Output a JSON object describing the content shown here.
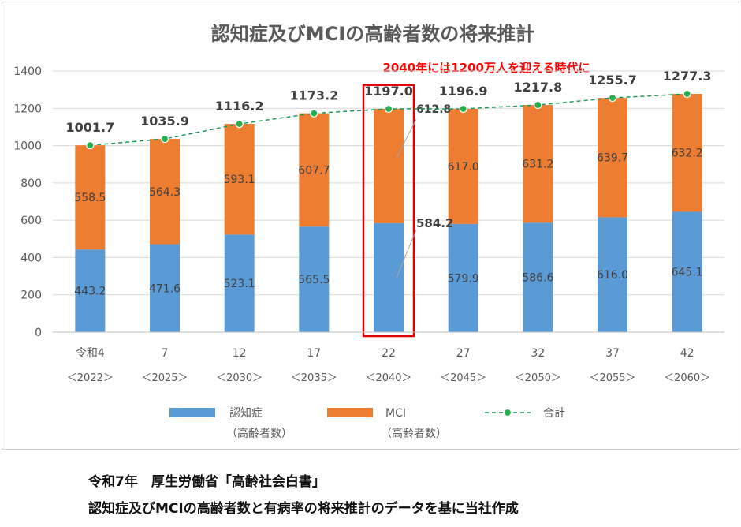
{
  "chart_data": {
    "type": "bar",
    "title": "認知症及びMCIの高齢者数の将来推計",
    "annotation": "2040年には1200万人を迎える時代に",
    "categories": [
      "令和4",
      "7",
      "12",
      "17",
      "22",
      "27",
      "32",
      "37",
      "42"
    ],
    "years": [
      "＜2022＞",
      "＜2025＞",
      "＜2030＞",
      "＜2035＞",
      "＜2040＞",
      "＜2045＞",
      "＜2050＞",
      "＜2055＞",
      "＜2060＞"
    ],
    "series": [
      {
        "name": "認知症",
        "sub": "（高齢者数）",
        "color": "#5b9bd5",
        "values": [
          443.2,
          471.6,
          523.1,
          565.5,
          584.2,
          579.9,
          586.6,
          616.0,
          645.1
        ],
        "labels": [
          "443.2",
          "471.6",
          "523.1",
          "565.5",
          "584.2",
          "579.9",
          "586.6",
          "616.0",
          "645.1"
        ]
      },
      {
        "name": "MCI",
        "sub": "（高齢者数）",
        "color": "#ed7d31",
        "values": [
          558.5,
          564.3,
          593.1,
          607.7,
          612.8,
          617.0,
          631.2,
          639.7,
          632.2
        ],
        "labels": [
          "558.5",
          "564.3",
          "593.1",
          "607.7",
          "612.8",
          "617.0",
          "631.2",
          "639.7",
          "632.2"
        ]
      },
      {
        "name": "合計",
        "type": "line",
        "color": "#1a9a5a",
        "values": [
          1001.7,
          1035.9,
          1116.2,
          1173.2,
          1197.0,
          1196.9,
          1217.8,
          1255.7,
          1277.3
        ],
        "labels": [
          "1001.7",
          "1035.9",
          "1116.2",
          "1173.2",
          "1197.0",
          "1196.9",
          "1217.8",
          "1255.7",
          "1277.3"
        ]
      }
    ],
    "ylim": [
      0,
      1400
    ],
    "yticks": [
      "0",
      "200",
      "400",
      "600",
      "800",
      "1000",
      "1200",
      "1400"
    ],
    "grid": true,
    "legend": "bottom",
    "highlight_category": "22",
    "highlight_color": "#e00000"
  },
  "source": {
    "line1": "令和7年　厚生労働省「高齢社会白書」",
    "line2": "認知症及びMCIの高齢者数と有病率の将来推計のデータを基に当社作成"
  }
}
